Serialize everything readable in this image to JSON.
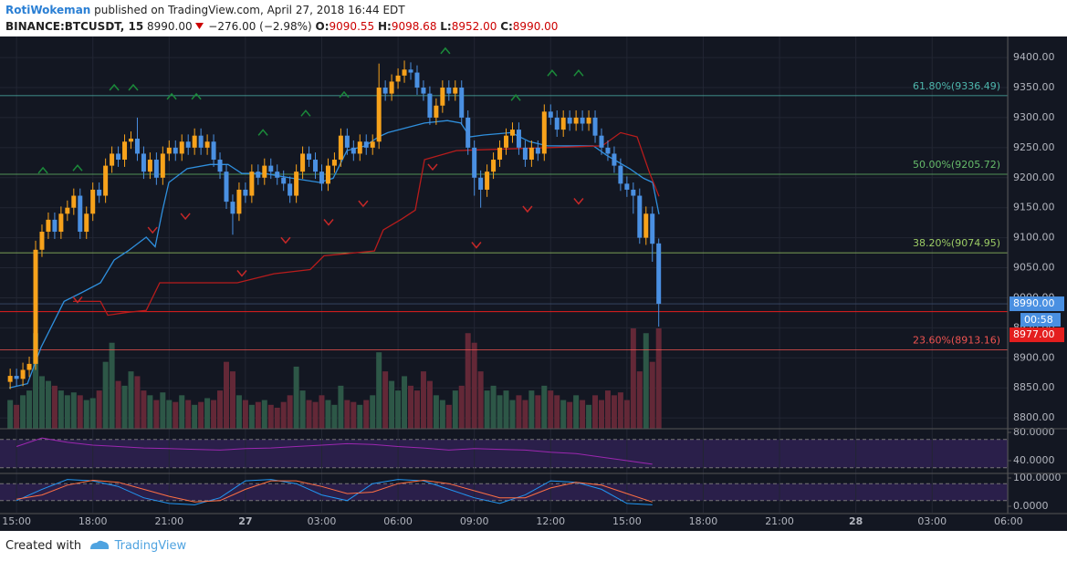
{
  "header": {
    "author": "RotiWokeman",
    "published": "published on TradingView.com, April 27, 2018 16:44 EDT",
    "symbol": "BINANCE:BTCUSDT, 15",
    "last": "8990.00",
    "change": "−276.00 (−2.98%)",
    "o_label": "O:",
    "o": "9090.55",
    "h_label": "H:",
    "h": "9098.68",
    "l_label": "L:",
    "l": "8952.00",
    "c_label": "C:",
    "c": "8990.00"
  },
  "footer": {
    "created": "Created with",
    "brand": "TradingView"
  },
  "chart_data": {
    "type": "candlestick",
    "up_color": "#f7a21b",
    "down_color": "#4a90e2",
    "volume_up_color": "#2d5747",
    "volume_down_color": "#632837",
    "grid": true,
    "xlim": [
      -0.65,
      38.97
    ],
    "ylim": [
      8782,
      9429
    ],
    "xticks": [
      {
        "value": 0,
        "label": "15:00"
      },
      {
        "value": 3,
        "label": "18:00"
      },
      {
        "value": 6,
        "label": "21:00"
      },
      {
        "value": 9,
        "label": "27"
      },
      {
        "value": 12,
        "label": "03:00"
      },
      {
        "value": 15,
        "label": "06:00"
      },
      {
        "value": 18,
        "label": "09:00"
      },
      {
        "value": 21,
        "label": "12:00"
      },
      {
        "value": 24,
        "label": "15:00"
      },
      {
        "value": 27,
        "label": "18:00"
      },
      {
        "value": 30,
        "label": "21:00"
      },
      {
        "value": 33,
        "label": "28"
      },
      {
        "value": 36,
        "label": "03:00"
      },
      {
        "value": 39,
        "label": "06:00"
      }
    ],
    "yticks": [
      {
        "value": 8800,
        "label": "8800.00"
      },
      {
        "value": 8850,
        "label": "8850.00"
      },
      {
        "value": 8900,
        "label": "8900.00"
      },
      {
        "value": 8950,
        "label": "8950.00"
      },
      {
        "value": 9000,
        "label": "9000.00"
      },
      {
        "value": 9050,
        "label": "9050.00"
      },
      {
        "value": 9100,
        "label": "9100.00"
      },
      {
        "value": 9150,
        "label": "9150.00"
      },
      {
        "value": 9200,
        "label": "9200.00"
      },
      {
        "value": 9250,
        "label": "9250.00"
      },
      {
        "value": 9300,
        "label": "9300.00"
      },
      {
        "value": 9350,
        "label": "9350.00"
      },
      {
        "value": 9400,
        "label": "9400.00"
      }
    ],
    "x": [
      -0.25,
      0,
      0.25,
      0.5,
      0.75,
      1,
      1.25,
      1.5,
      1.75,
      2,
      2.25,
      2.5,
      2.75,
      3,
      3.25,
      3.5,
      3.75,
      4,
      4.25,
      4.5,
      4.75,
      5,
      5.25,
      5.5,
      5.75,
      6,
      6.25,
      6.5,
      6.75,
      7,
      7.25,
      7.5,
      7.75,
      8,
      8.25,
      8.5,
      8.75,
      9,
      9.25,
      9.5,
      9.75,
      10,
      10.25,
      10.5,
      10.75,
      11,
      11.25,
      11.5,
      11.75,
      12,
      12.25,
      12.5,
      12.75,
      13,
      13.25,
      13.5,
      13.75,
      14,
      14.25,
      14.5,
      14.75,
      15,
      15.25,
      15.5,
      15.75,
      16,
      16.25,
      16.5,
      16.75,
      17,
      17.25,
      17.5,
      17.75,
      18,
      18.25,
      18.5,
      18.75,
      19,
      19.25,
      19.5,
      19.75,
      20,
      20.25,
      20.5,
      20.75,
      21,
      21.25,
      21.5,
      21.75,
      22,
      22.25,
      22.5,
      22.75,
      23,
      23.25,
      23.5,
      23.75,
      24,
      24.25,
      24.5,
      24.75,
      25,
      25.25
    ],
    "open": [
      8860,
      8870,
      8865,
      8880,
      8890,
      9080,
      9110,
      9130,
      9110,
      9140,
      9150,
      9170,
      9110,
      9140,
      9180,
      9170,
      9220,
      9240,
      9230,
      9260,
      9265,
      9240,
      9210,
      9230,
      9200,
      9240,
      9250,
      9240,
      9260,
      9250,
      9270,
      9250,
      9260,
      9230,
      9210,
      9160,
      9140,
      9180,
      9170,
      9210,
      9200,
      9220,
      9210,
      9200,
      9190,
      9170,
      9210,
      9240,
      9230,
      9210,
      9190,
      9220,
      9230,
      9270,
      9250,
      9240,
      9260,
      9250,
      9260,
      9350,
      9340,
      9360,
      9370,
      9380,
      9375,
      9350,
      9340,
      9300,
      9320,
      9350,
      9340,
      9350,
      9300,
      9250,
      9200,
      9180,
      9210,
      9230,
      9250,
      9270,
      9280,
      9250,
      9230,
      9250,
      9240,
      9310,
      9300,
      9280,
      9300,
      9290,
      9300,
      9290,
      9300,
      9270,
      9250,
      9240,
      9220,
      9190,
      9180,
      9170,
      9100,
      9140,
      9090.55
    ],
    "high": [
      8882,
      8882,
      8892,
      8902,
      9095,
      9122,
      9142,
      9142,
      9152,
      9162,
      9182,
      9182,
      9152,
      9192,
      9192,
      9232,
      9252,
      9252,
      9272,
      9277,
      9300,
      9252,
      9242,
      9242,
      9252,
      9262,
      9262,
      9272,
      9272,
      9282,
      9282,
      9272,
      9272,
      9242,
      9222,
      9172,
      9192,
      9192,
      9222,
      9222,
      9232,
      9232,
      9222,
      9212,
      9202,
      9222,
      9252,
      9252,
      9242,
      9222,
      9232,
      9242,
      9282,
      9282,
      9262,
      9272,
      9272,
      9272,
      9390,
      9362,
      9372,
      9382,
      9395,
      9392,
      9387,
      9362,
      9352,
      9332,
      9362,
      9362,
      9362,
      9362,
      9312,
      9262,
      9212,
      9222,
      9242,
      9262,
      9282,
      9292,
      9292,
      9262,
      9262,
      9262,
      9322,
      9322,
      9312,
      9312,
      9312,
      9312,
      9312,
      9312,
      9312,
      9282,
      9262,
      9252,
      9232,
      9202,
      9192,
      9182,
      9152,
      9152,
      9098.68
    ],
    "low": [
      8848,
      8853,
      8853,
      8868,
      8880,
      9068,
      9098,
      9098,
      9098,
      9128,
      9138,
      9098,
      9098,
      9128,
      9158,
      9158,
      9208,
      9218,
      9218,
      9248,
      9228,
      9198,
      9198,
      9188,
      9188,
      9228,
      9228,
      9228,
      9238,
      9238,
      9238,
      9238,
      9218,
      9198,
      9148,
      9105,
      9128,
      9158,
      9158,
      9188,
      9188,
      9198,
      9188,
      9178,
      9158,
      9158,
      9198,
      9218,
      9198,
      9178,
      9178,
      9208,
      9218,
      9238,
      9228,
      9228,
      9238,
      9238,
      9248,
      9328,
      9328,
      9348,
      9358,
      9363,
      9338,
      9328,
      9288,
      9288,
      9308,
      9328,
      9328,
      9288,
      9238,
      9170,
      9150,
      9168,
      9198,
      9218,
      9238,
      9258,
      9238,
      9218,
      9218,
      9228,
      9228,
      9288,
      9268,
      9268,
      9278,
      9278,
      9278,
      9278,
      9258,
      9238,
      9228,
      9208,
      9178,
      9168,
      9140,
      9090,
      9088,
      9060,
      8952
    ],
    "close": [
      8870,
      8865,
      8880,
      8890,
      9080,
      9110,
      9130,
      9110,
      9140,
      9150,
      9170,
      9110,
      9140,
      9180,
      9170,
      9220,
      9240,
      9230,
      9260,
      9265,
      9240,
      9210,
      9230,
      9200,
      9240,
      9250,
      9240,
      9260,
      9250,
      9270,
      9250,
      9260,
      9230,
      9210,
      9160,
      9140,
      9180,
      9170,
      9210,
      9200,
      9220,
      9210,
      9200,
      9190,
      9170,
      9210,
      9240,
      9230,
      9210,
      9190,
      9220,
      9230,
      9270,
      9250,
      9240,
      9260,
      9250,
      9260,
      9350,
      9340,
      9360,
      9370,
      9380,
      9375,
      9350,
      9340,
      9300,
      9320,
      9350,
      9340,
      9350,
      9300,
      9250,
      9200,
      9180,
      9210,
      9230,
      9250,
      9270,
      9280,
      9250,
      9230,
      9250,
      9240,
      9310,
      9300,
      9280,
      9300,
      9290,
      9300,
      9290,
      9300,
      9270,
      9250,
      9240,
      9220,
      9190,
      9180,
      9170,
      9100,
      9140,
      9090,
      8990
    ],
    "volume": [
      30,
      25,
      35,
      40,
      100,
      55,
      50,
      45,
      40,
      35,
      38,
      35,
      30,
      32,
      40,
      70,
      90,
      50,
      45,
      60,
      55,
      40,
      35,
      30,
      38,
      30,
      28,
      35,
      30,
      25,
      28,
      32,
      30,
      40,
      70,
      60,
      35,
      30,
      25,
      28,
      30,
      25,
      22,
      28,
      35,
      65,
      40,
      30,
      28,
      35,
      30,
      25,
      45,
      30,
      28,
      25,
      30,
      35,
      80,
      60,
      50,
      40,
      55,
      45,
      40,
      60,
      50,
      35,
      30,
      25,
      40,
      45,
      100,
      90,
      60,
      40,
      45,
      35,
      40,
      30,
      35,
      30,
      40,
      35,
      45,
      40,
      35,
      30,
      28,
      35,
      30,
      25,
      35,
      30,
      40,
      35,
      38,
      30,
      105,
      60,
      100,
      70,
      105
    ],
    "supertrend_up": {
      "color": "#2f8fdd",
      "x": [
        -0.29,
        0.43,
        0.97,
        1.87,
        2.58,
        3.3,
        3.84,
        4.38,
        5.1,
        5.45,
        5.74,
        5.99,
        6.71,
        7.61,
        8.32,
        8.86,
        9.76,
        10.84,
        11.91,
        12.45,
        12.99,
        13.71,
        14.24,
        14.6,
        15.32,
        16.04,
        16.94,
        17.47,
        17.83,
        18.37,
        19.45,
        20.17,
        20.88,
        22.68,
        23.21,
        24.11,
        24.65,
        25.01,
        25.26
      ],
      "values": [
        8850,
        8857,
        8918,
        8994,
        9009,
        9025,
        9063,
        9078,
        9101,
        9085,
        9146,
        9192,
        9215,
        9222,
        9222,
        9207,
        9207,
        9199,
        9192,
        9199,
        9245,
        9253,
        9268,
        9275,
        9283,
        9291,
        9295,
        9291,
        9268,
        9271,
        9275,
        9260,
        9253,
        9253,
        9237,
        9215,
        9199,
        9192,
        9139
      ]
    },
    "supertrend_down": {
      "color": "#b71c1c",
      "x": [
        2.22,
        3.3,
        3.59,
        4.38,
        5.1,
        5.63,
        8.68,
        10.12,
        11.55,
        12.09,
        14.07,
        14.42,
        15.14,
        15.68,
        16.04,
        17.29,
        23.03,
        23.75,
        24.4,
        24.9,
        25.26
      ],
      "values": [
        8994,
        8994,
        8971,
        8976,
        8979,
        9025,
        9025,
        9040,
        9047,
        9070,
        9078,
        9113,
        9131,
        9146,
        9230,
        9245,
        9253,
        9275,
        9268,
        9207,
        9169
      ]
    },
    "buy_signals": {
      "color": "#1b8a3a",
      "x": [
        1.04,
        2.4,
        3.84,
        4.59,
        6.1,
        7.07,
        9.69,
        11.37,
        12.88,
        16.86,
        19.63,
        21.06,
        22.1
      ],
      "values": [
        9212,
        9216,
        9350,
        9350,
        9335,
        9335,
        9275,
        9307,
        9338,
        9411,
        9333,
        9374,
        9374
      ]
    },
    "sell_signals": {
      "color": "#c62828",
      "x": [
        2.4,
        5.35,
        6.64,
        8.86,
        10.58,
        12.27,
        13.63,
        16.36,
        18.08,
        20.09,
        22.1
      ],
      "values": [
        8997,
        9113,
        9136,
        9041,
        9096,
        9126,
        9157,
        9218,
        9088,
        9148,
        9161
      ]
    },
    "fib_levels": [
      {
        "label": "61.80%(9336.49)",
        "value": 9336.49,
        "color": "#4db6ac"
      },
      {
        "label": "50.00%(9205.72)",
        "value": 9205.72,
        "color": "#66bb6a"
      },
      {
        "label": "38.20%(9074.95)",
        "value": 9074.95,
        "color": "#9ccc65"
      },
      {
        "label": "23.60%(8913.16)",
        "value": 8913.16,
        "color": "#ef5350"
      }
    ],
    "last_price": {
      "value": 8990,
      "label": "8990.00",
      "color": "#4a90e2"
    },
    "countdown": "00:58",
    "price_line": {
      "value": 8977,
      "label": "8977.00",
      "color": "#e41e1e"
    },
    "rsi": {
      "color": "#9c27b0",
      "ylim": [
        23.2,
        82.6
      ],
      "bands": [
        30,
        70
      ],
      "yticks": [
        {
          "value": 80,
          "label": "80.0000"
        },
        {
          "value": 40,
          "label": "40.0000"
        }
      ],
      "x": [
        0,
        1,
        2,
        3,
        4,
        5,
        6,
        7,
        8,
        9,
        10,
        11,
        12,
        13,
        14,
        15,
        16,
        17,
        18,
        19,
        20,
        21,
        22,
        23,
        24,
        25
      ],
      "values": [
        60,
        72,
        66,
        62,
        60,
        58,
        57,
        56,
        55,
        57,
        58,
        60,
        62,
        64,
        63,
        60,
        58,
        55,
        57,
        56,
        55,
        52,
        50,
        45,
        40,
        35
      ]
    },
    "stoch": {
      "ylim": [
        -22.6,
        109.7
      ],
      "bands": [
        20,
        80
      ],
      "yticks": [
        {
          "value": 100,
          "label": "100.0000"
        },
        {
          "value": 0,
          "label": "0.0000"
        }
      ],
      "x": [
        0,
        1,
        2,
        3,
        4,
        5,
        6,
        7,
        8,
        9,
        10,
        11,
        12,
        13,
        14,
        15,
        16,
        17,
        18,
        19,
        20,
        21,
        22,
        23,
        24,
        25
      ],
      "k": {
        "color": "#2196f3",
        "values": [
          20,
          60,
          95,
          90,
          70,
          30,
          10,
          5,
          30,
          90,
          95,
          80,
          40,
          20,
          80,
          95,
          90,
          60,
          30,
          10,
          40,
          90,
          85,
          60,
          10,
          5
        ]
      },
      "d": {
        "color": "#ff7043",
        "values": [
          25,
          40,
          75,
          92,
          85,
          60,
          35,
          15,
          20,
          60,
          90,
          90,
          70,
          45,
          50,
          80,
          92,
          80,
          55,
          30,
          30,
          65,
          85,
          75,
          45,
          15
        ]
      }
    }
  }
}
